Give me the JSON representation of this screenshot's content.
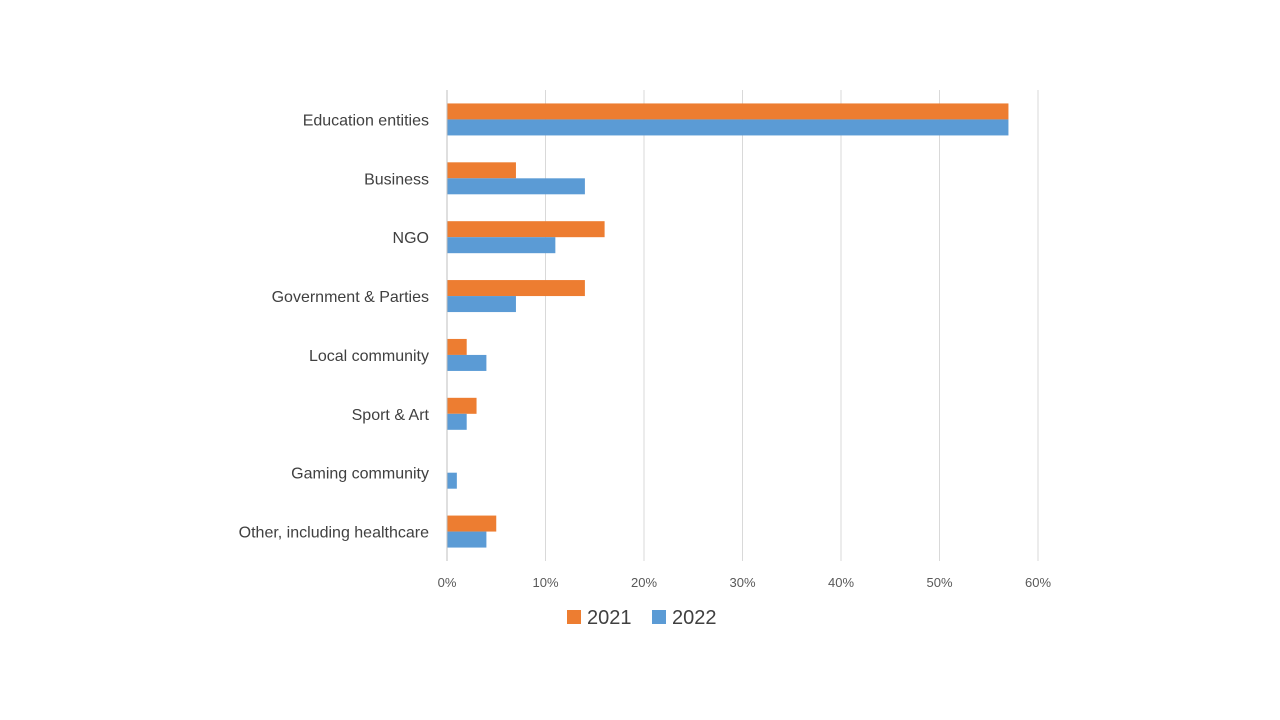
{
  "chart_data": {
    "type": "bar",
    "orientation": "horizontal",
    "categories": [
      "Education entities",
      "Business",
      "NGO",
      "Government & Parties",
      "Local community",
      "Sport & Art",
      "Gaming community",
      "Other, including healthcare"
    ],
    "series": [
      {
        "name": "2021",
        "color": "#ed7d31",
        "values": [
          57,
          7,
          16,
          14,
          2,
          3,
          0,
          5
        ]
      },
      {
        "name": "2022",
        "color": "#5b9bd5",
        "values": [
          57,
          14,
          11,
          7,
          4,
          2,
          1,
          4
        ]
      }
    ],
    "xlim": [
      0,
      60
    ],
    "xticks": [
      0,
      10,
      20,
      30,
      40,
      50,
      60
    ],
    "xtick_labels": [
      "0%",
      "10%",
      "20%",
      "30%",
      "40%",
      "50%",
      "60%"
    ],
    "grid": true,
    "legend_position": "bottom",
    "title": "",
    "xlabel": "",
    "ylabel": ""
  }
}
